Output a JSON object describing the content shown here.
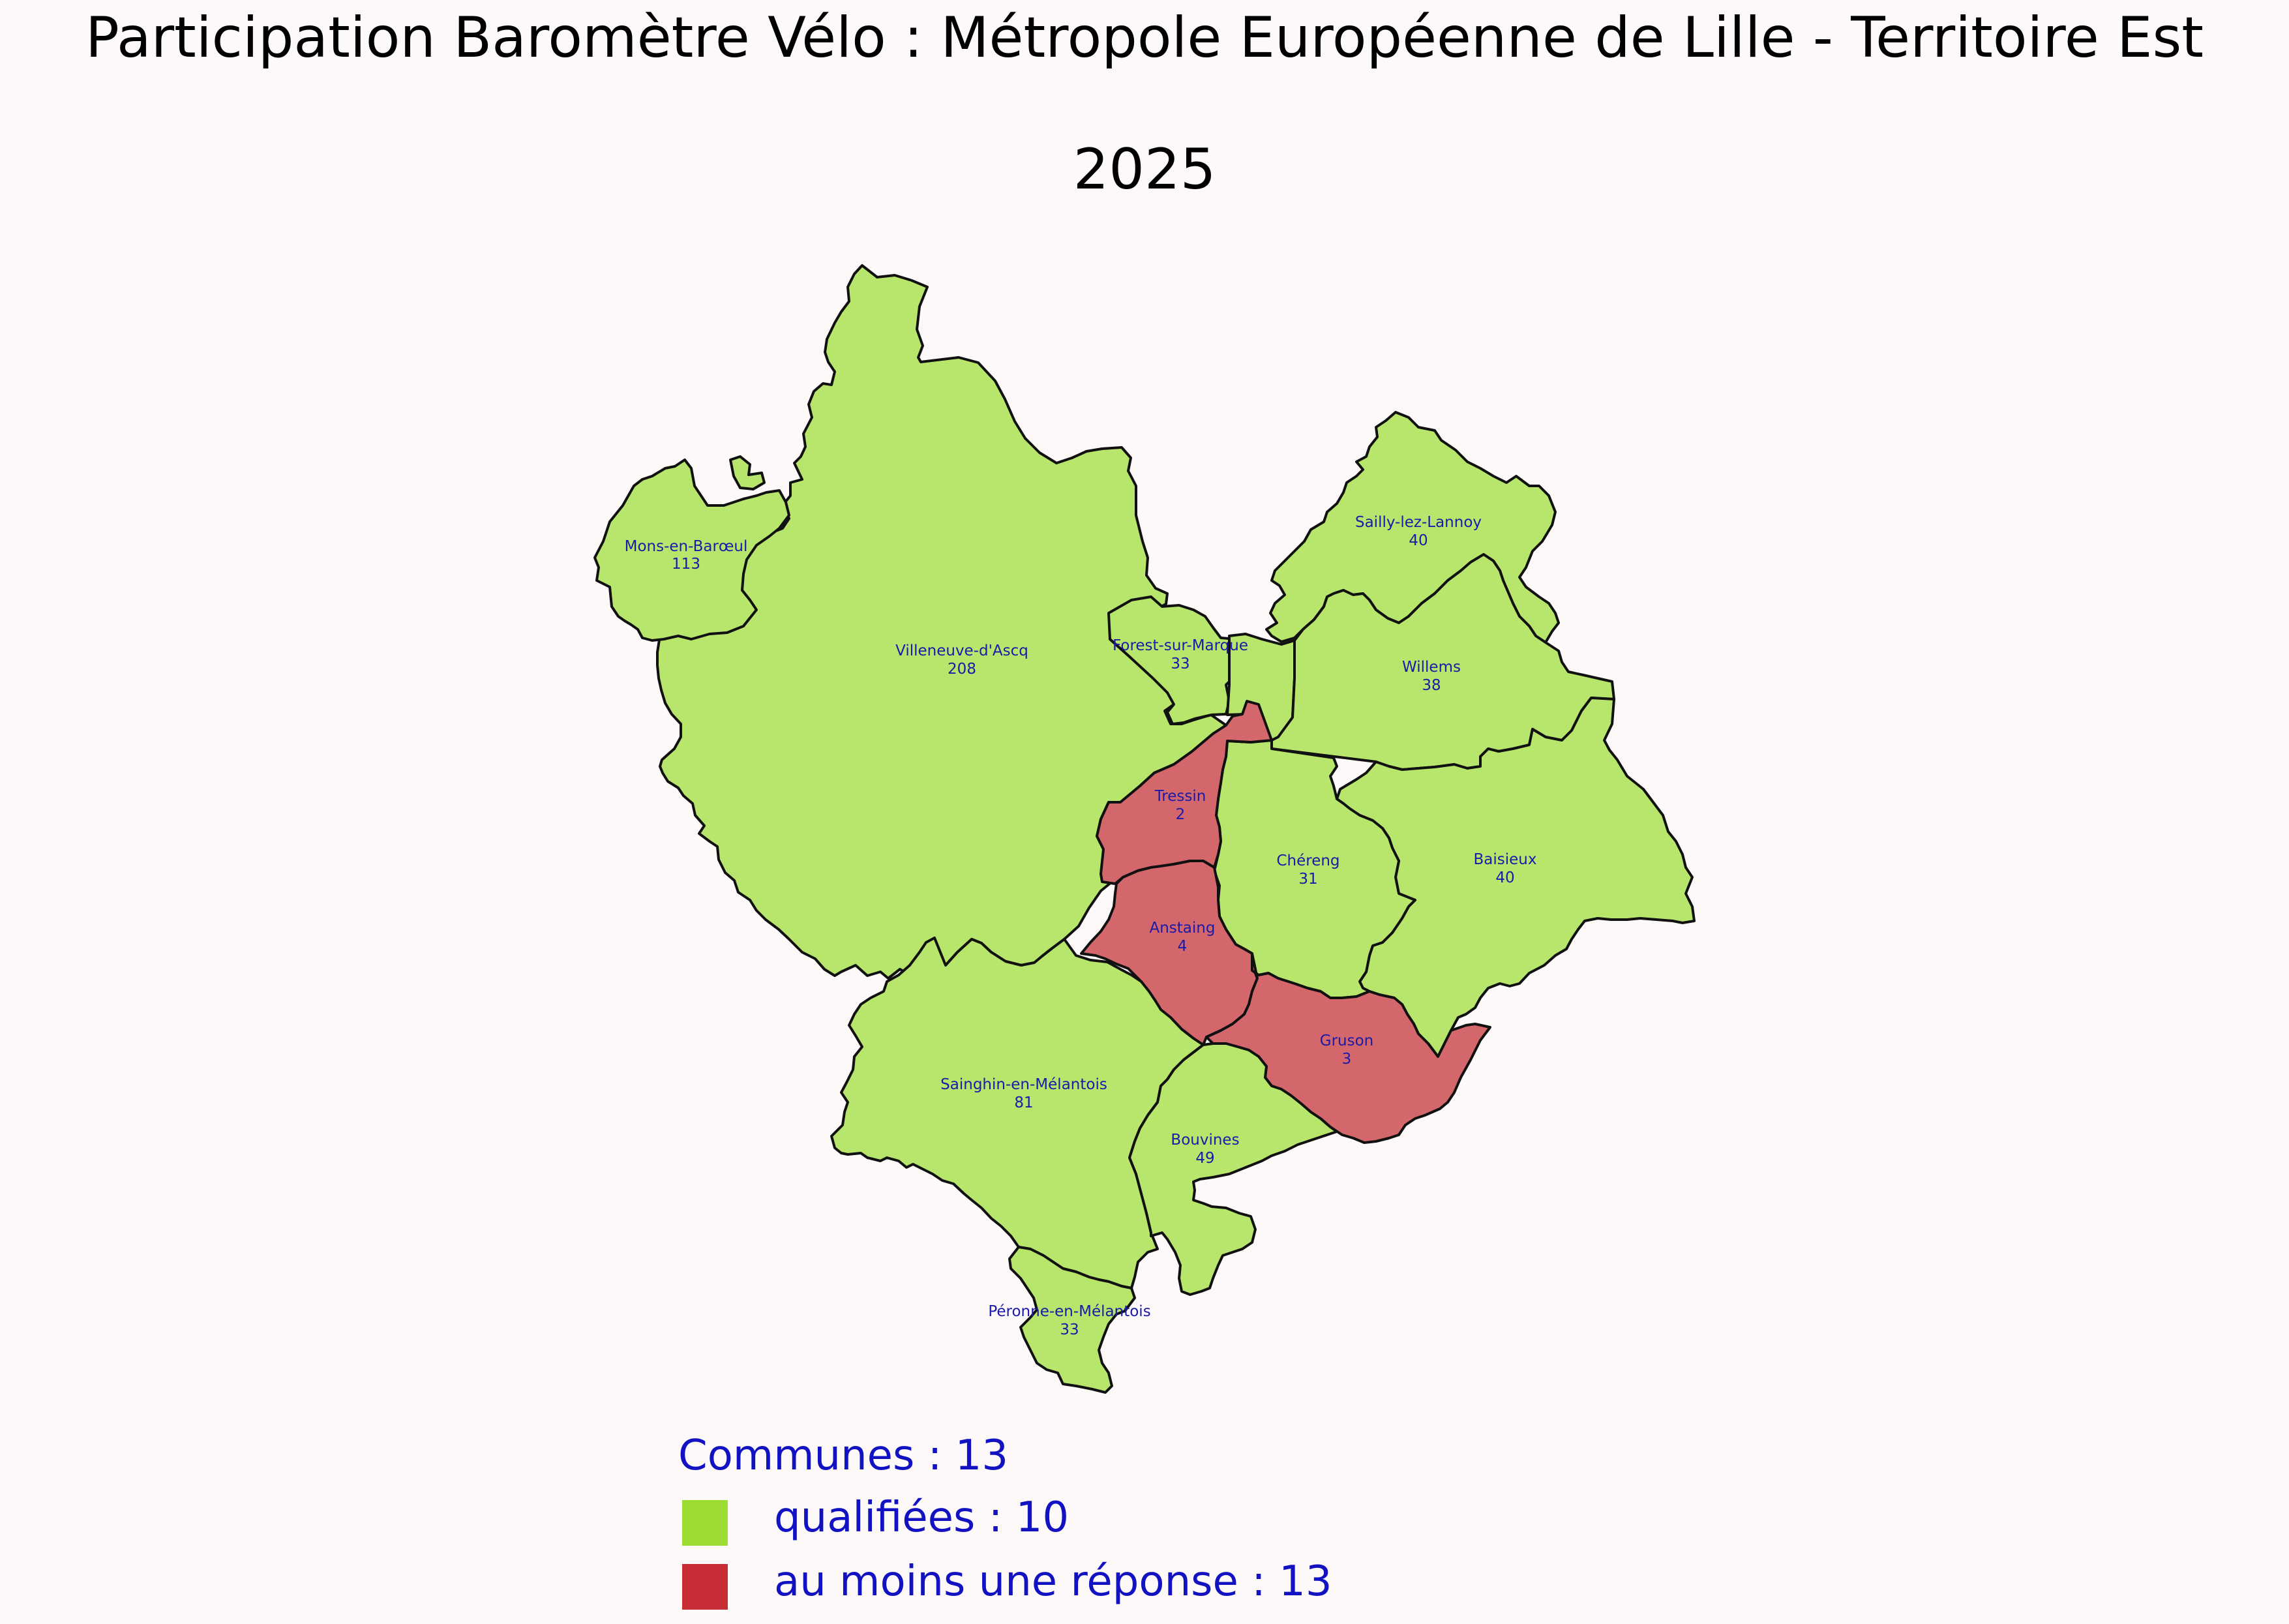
{
  "title": {
    "line1": "Participation Baromètre Vélo : Métropole Européenne de Lille - Territoire Est",
    "line2": "2025"
  },
  "colors": {
    "qualified_fill": "#b8e66c",
    "response_fill": "#d4676b",
    "legend_qualified": "#9ddd33",
    "legend_response": "#c62d35",
    "label_text": "#1a1aa8",
    "background": "#fdf9f8"
  },
  "communes": [
    {
      "key": "mons",
      "name": "Mons-en-Barœul",
      "count": "113",
      "status": "qualifiée"
    },
    {
      "key": "villeneuve",
      "name": "Villeneuve-d'Ascq",
      "count": "208",
      "status": "qualifiée"
    },
    {
      "key": "forest",
      "name": "Forest-sur-Marque",
      "count": "33",
      "status": "qualifiée"
    },
    {
      "key": "sailly",
      "name": "Sailly-lez-Lannoy",
      "count": "40",
      "status": "qualifiée"
    },
    {
      "key": "willems",
      "name": "Willems",
      "count": "38",
      "status": "qualifiée"
    },
    {
      "key": "tressin",
      "name": "Tressin",
      "count": "2",
      "status": "au moins une réponse"
    },
    {
      "key": "chereng",
      "name": "Chéreng",
      "count": "31",
      "status": "qualifiée"
    },
    {
      "key": "baisieux",
      "name": "Baisieux",
      "count": "40",
      "status": "qualifiée"
    },
    {
      "key": "anstaing",
      "name": "Anstaing",
      "count": "4",
      "status": "au moins une réponse"
    },
    {
      "key": "gruson",
      "name": "Gruson",
      "count": "3",
      "status": "au moins une réponse"
    },
    {
      "key": "sainghin",
      "name": "Sainghin-en-Mélantois",
      "count": "81",
      "status": "qualifiée"
    },
    {
      "key": "bouvines",
      "name": "Bouvines",
      "count": "49",
      "status": "qualifiée"
    },
    {
      "key": "peronne",
      "name": "Péronne-en-Mélantois",
      "count": "33",
      "status": "qualifiée"
    }
  ],
  "legend": {
    "header": "Communes : 13",
    "qualified_label": "qualifiées : 10",
    "response_label": "au moins une réponse : 13"
  }
}
